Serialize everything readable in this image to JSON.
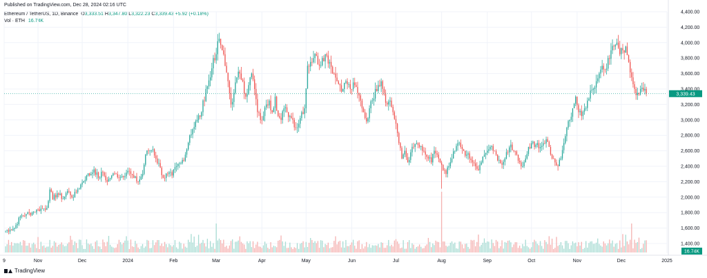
{
  "header": {
    "published": "Published on TradingView.com, Dec 28, 2024 02:16 UTC",
    "symbol": "Ethereum / TetherUS, 1D, Binance",
    "ohlc": [
      {
        "label": "O",
        "value": "3,333.51"
      },
      {
        "label": "H",
        "value": "3,347.80"
      },
      {
        "label": "L",
        "value": "3,322.23"
      },
      {
        "label": "C",
        "value": "3,339.43"
      }
    ],
    "change": "+5.92 (+0.18%)",
    "vol_label": "Vol · ETH",
    "vol_value": "16.74K"
  },
  "footer": {
    "brand": "TradingView"
  },
  "colors": {
    "up": "#26a69a",
    "down": "#ef5350",
    "up_vol": "#a8dcd3",
    "down_vol": "#f5b3b2",
    "badge": "#089981",
    "last_line": "#26a69a",
    "grid": "#f0f3fa"
  },
  "chart_data": {
    "type": "candlestick",
    "title": "Ethereum / TetherUS, 1D, Binance",
    "ylim": [
      1400,
      4400
    ],
    "y_ticks": [
      1400,
      1600,
      1800,
      2000,
      2200,
      2400,
      2600,
      2800,
      3000,
      3200,
      3400,
      3600,
      3800,
      4000,
      4200,
      4400
    ],
    "y_tick_labels": [
      "1,400.00",
      "1,600.00",
      "1,800.00",
      "2,000.00",
      "2,200.00",
      "2,400.00",
      "2,600.00",
      "2,800.00",
      "3,000.00",
      "3,200.00",
      "3,400.00",
      "3,600.00",
      "3,800.00",
      "4,000.00",
      "4,200.00",
      "4,400.00"
    ],
    "x_tick_labels": [
      "9",
      "Nov",
      "Dec",
      "2024",
      "Feb",
      "Mar",
      "Apr",
      "May",
      "Jun",
      "Jul",
      "Aug",
      "Sep",
      "Oct",
      "Nov",
      "Dec",
      "2025"
    ],
    "x_tick_day_index": [
      0,
      23,
      53,
      84,
      115,
      144,
      175,
      205,
      236,
      266,
      297,
      328,
      358,
      389,
      419,
      450
    ],
    "last_price": 3339.43,
    "last_price_label": "3,339.43",
    "last_volume_label": "16.74K",
    "grid": true,
    "anchors": [
      [
        0,
        1560
      ],
      [
        4,
        1580
      ],
      [
        7,
        1600
      ],
      [
        11,
        1750
      ],
      [
        15,
        1780
      ],
      [
        19,
        1800
      ],
      [
        23,
        1840
      ],
      [
        26,
        1850
      ],
      [
        29,
        1860
      ],
      [
        31,
        2100
      ],
      [
        33,
        1970
      ],
      [
        36,
        2050
      ],
      [
        40,
        1980
      ],
      [
        43,
        2080
      ],
      [
        47,
        2000
      ],
      [
        50,
        2100
      ],
      [
        53,
        2190
      ],
      [
        56,
        2280
      ],
      [
        59,
        2300
      ],
      [
        61,
        2360
      ],
      [
        64,
        2250
      ],
      [
        67,
        2320
      ],
      [
        70,
        2200
      ],
      [
        73,
        2280
      ],
      [
        76,
        2300
      ],
      [
        79,
        2260
      ],
      [
        84,
        2340
      ],
      [
        86,
        2300
      ],
      [
        88,
        2250
      ],
      [
        91,
        2200
      ],
      [
        94,
        2300
      ],
      [
        96,
        2550
      ],
      [
        98,
        2600
      ],
      [
        101,
        2620
      ],
      [
        103,
        2500
      ],
      [
        106,
        2380
      ],
      [
        108,
        2250
      ],
      [
        111,
        2300
      ],
      [
        114,
        2280
      ],
      [
        117,
        2400
      ],
      [
        120,
        2440
      ],
      [
        123,
        2550
      ],
      [
        126,
        2800
      ],
      [
        128,
        2880
      ],
      [
        131,
        3000
      ],
      [
        134,
        3100
      ],
      [
        137,
        3400
      ],
      [
        140,
        3550
      ],
      [
        142,
        3800
      ],
      [
        144,
        3850
      ],
      [
        146,
        4050
      ],
      [
        148,
        3900
      ],
      [
        150,
        3700
      ],
      [
        152,
        3500
      ],
      [
        154,
        3200
      ],
      [
        156,
        3350
      ],
      [
        158,
        3550
      ],
      [
        160,
        3600
      ],
      [
        162,
        3500
      ],
      [
        164,
        3300
      ],
      [
        166,
        3450
      ],
      [
        168,
        3600
      ],
      [
        170,
        3400
      ],
      [
        172,
        3100
      ],
      [
        174,
        3000
      ],
      [
        176,
        3050
      ],
      [
        178,
        3200
      ],
      [
        180,
        3250
      ],
      [
        182,
        3100
      ],
      [
        184,
        3300
      ],
      [
        186,
        3050
      ],
      [
        188,
        3000
      ],
      [
        190,
        3150
      ],
      [
        192,
        3100
      ],
      [
        194,
        3050
      ],
      [
        196,
        3000
      ],
      [
        198,
        2900
      ],
      [
        200,
        2950
      ],
      [
        202,
        3100
      ],
      [
        204,
        3150
      ],
      [
        206,
        3700
      ],
      [
        208,
        3750
      ],
      [
        210,
        3800
      ],
      [
        212,
        3830
      ],
      [
        214,
        3700
      ],
      [
        216,
        3800
      ],
      [
        218,
        3850
      ],
      [
        221,
        3750
      ],
      [
        224,
        3600
      ],
      [
        226,
        3500
      ],
      [
        228,
        3450
      ],
      [
        230,
        3400
      ],
      [
        232,
        3500
      ],
      [
        235,
        3400
      ],
      [
        238,
        3450
      ],
      [
        240,
        3350
      ],
      [
        242,
        3250
      ],
      [
        244,
        3100
      ],
      [
        246,
        2980
      ],
      [
        248,
        3150
      ],
      [
        250,
        3250
      ],
      [
        252,
        3400
      ],
      [
        254,
        3450
      ],
      [
        256,
        3500
      ],
      [
        258,
        3350
      ],
      [
        260,
        3200
      ],
      [
        262,
        3250
      ],
      [
        264,
        3100
      ],
      [
        266,
        2950
      ],
      [
        268,
        2700
      ],
      [
        270,
        2500
      ],
      [
        272,
        2600
      ],
      [
        274,
        2450
      ],
      [
        276,
        2580
      ],
      [
        278,
        2650
      ],
      [
        280,
        2700
      ],
      [
        282,
        2650
      ],
      [
        284,
        2600
      ],
      [
        286,
        2550
      ],
      [
        288,
        2500
      ],
      [
        290,
        2450
      ],
      [
        292,
        2600
      ],
      [
        294,
        2550
      ],
      [
        296,
        2450
      ],
      [
        298,
        2350
      ],
      [
        300,
        2300
      ],
      [
        302,
        2400
      ],
      [
        304,
        2500
      ],
      [
        306,
        2600
      ],
      [
        308,
        2700
      ],
      [
        310,
        2650
      ],
      [
        312,
        2600
      ],
      [
        314,
        2550
      ],
      [
        316,
        2500
      ],
      [
        318,
        2450
      ],
      [
        320,
        2400
      ],
      [
        322,
        2350
      ],
      [
        324,
        2450
      ],
      [
        326,
        2550
      ],
      [
        328,
        2600
      ],
      [
        330,
        2650
      ],
      [
        332,
        2600
      ],
      [
        334,
        2550
      ],
      [
        336,
        2480
      ],
      [
        338,
        2420
      ],
      [
        340,
        2500
      ],
      [
        342,
        2580
      ],
      [
        344,
        2680
      ],
      [
        346,
        2600
      ],
      [
        348,
        2550
      ],
      [
        350,
        2450
      ],
      [
        352,
        2400
      ],
      [
        354,
        2500
      ],
      [
        356,
        2650
      ],
      [
        358,
        2700
      ],
      [
        360,
        2650
      ],
      [
        362,
        2700
      ],
      [
        364,
        2650
      ],
      [
        366,
        2700
      ],
      [
        368,
        2750
      ],
      [
        370,
        2650
      ],
      [
        372,
        2500
      ],
      [
        374,
        2450
      ],
      [
        376,
        2400
      ],
      [
        378,
        2500
      ],
      [
        380,
        2700
      ],
      [
        382,
        2900
      ],
      [
        384,
        3000
      ],
      [
        386,
        3150
      ],
      [
        388,
        3300
      ],
      [
        390,
        3100
      ],
      [
        392,
        3050
      ],
      [
        394,
        3150
      ],
      [
        396,
        3250
      ],
      [
        398,
        3380
      ],
      [
        400,
        3400
      ],
      [
        402,
        3500
      ],
      [
        404,
        3600
      ],
      [
        406,
        3700
      ],
      [
        408,
        3650
      ],
      [
        410,
        3800
      ],
      [
        412,
        3900
      ],
      [
        414,
        3950
      ],
      [
        416,
        4000
      ],
      [
        418,
        3850
      ],
      [
        420,
        3900
      ],
      [
        422,
        3950
      ],
      [
        424,
        3750
      ],
      [
        426,
        3550
      ],
      [
        428,
        3400
      ],
      [
        430,
        3350
      ],
      [
        432,
        3400
      ],
      [
        434,
        3380
      ],
      [
        436,
        3339.43
      ]
    ]
  }
}
